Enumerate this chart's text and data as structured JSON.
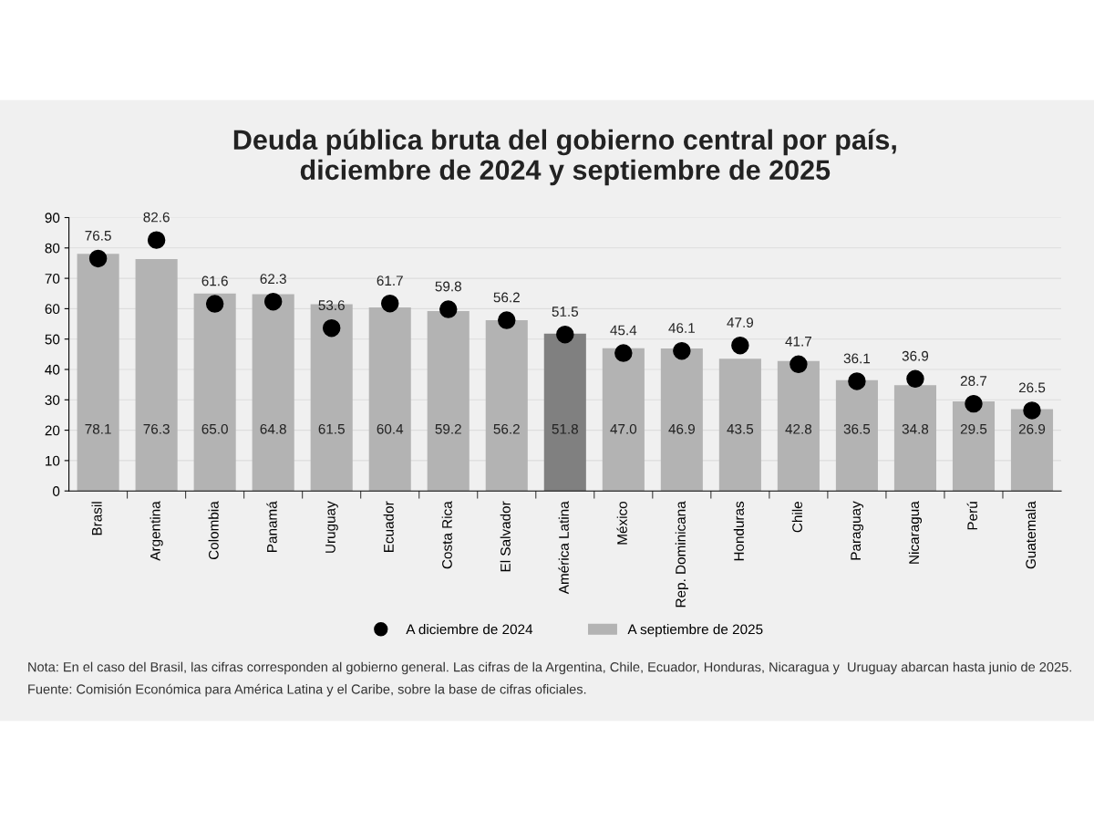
{
  "chart_data": {
    "type": "bar",
    "title": "Deuda pública bruta del gobierno central por país,\ndiciembre de 2024 y septiembre de 2025",
    "categories": [
      "Brasil",
      "Argentina",
      "Colombia",
      "Panamá",
      "Uruguay",
      "Ecuador",
      "Costa Rica",
      "El Salvador",
      "América Latina",
      "México",
      "Rep. Dominicana",
      "Honduras",
      "Chile",
      "Paraguay",
      "Nicaragua",
      "Perú",
      "Guatemala"
    ],
    "series": [
      {
        "name": "A septiembre de 2025",
        "color": "#b3b3b3",
        "colors": [
          "#b3b3b3",
          "#b3b3b3",
          "#b3b3b3",
          "#b3b3b3",
          "#b3b3b3",
          "#b3b3b3",
          "#b3b3b3",
          "#b3b3b3",
          "#808080",
          "#b3b3b3",
          "#b3b3b3",
          "#b3b3b3",
          "#b3b3b3",
          "#b3b3b3",
          "#b3b3b3",
          "#b3b3b3",
          "#b3b3b3"
        ],
        "values": [
          78.1,
          76.3,
          65.0,
          64.8,
          61.5,
          60.4,
          59.2,
          56.2,
          51.8,
          47.0,
          46.9,
          43.5,
          42.8,
          36.5,
          34.8,
          29.5,
          26.9
        ],
        "value_labels": [
          "78.1",
          "76.3",
          "65.0",
          "64.8",
          "61.5",
          "60.4",
          "59.2",
          "56.2",
          "51.8",
          "47.0",
          "46.9",
          "43.5",
          "42.8",
          "36.5",
          "34.8",
          "29.5",
          "26.9"
        ]
      },
      {
        "name": "A diciembre de 2024",
        "type": "scatter",
        "color": "#000000",
        "values": [
          76.5,
          82.6,
          61.6,
          62.3,
          53.6,
          61.7,
          59.8,
          56.2,
          51.5,
          45.4,
          46.1,
          47.9,
          41.7,
          36.1,
          36.9,
          28.7,
          26.5
        ],
        "value_labels": [
          "76.5",
          "82.6",
          "61.6",
          "62.3",
          "53.6",
          "61.7",
          "59.8",
          "56.2",
          "51.5",
          "45.4",
          "46.1",
          "47.9",
          "41.7",
          "36.1",
          "36.9",
          "28.7",
          "26.5"
        ]
      }
    ],
    "ylim": [
      0,
      90
    ],
    "yticks": [
      0,
      10,
      20,
      30,
      40,
      50,
      60,
      70,
      80,
      90
    ],
    "grid": "y",
    "legend": "bottom",
    "marker": "circle",
    "annotations": [
      "Nota: En el caso del Brasil, las cifras corresponden al gobierno general. Las cifras de la Argentina, Chile, Ecuador, Honduras, Nicaragua y  Uruguay abarcan hasta junio de 2025.",
      "Fuente: Comisión Económica para América Latina y el Caribe, sobre la base de cifras oficiales."
    ]
  }
}
